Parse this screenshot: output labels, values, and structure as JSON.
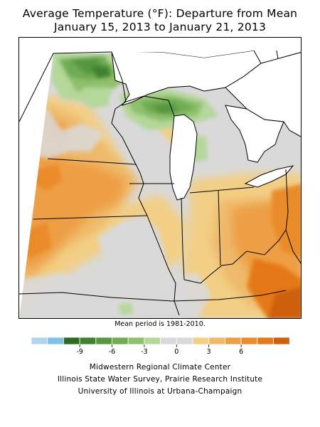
{
  "title": {
    "line1": "Average Temperature (°F): Departure from Mean",
    "line2": "January 15, 2013 to January 21, 2013"
  },
  "map": {
    "region": "Midwest (Minnesota, Iowa, Missouri, Wisconsin, Illinois, Michigan, Indiana, Ohio, Kentucky)",
    "land_neutral_color": "#d9d9d9",
    "lake_color": "#ffffff",
    "border_color": "#000000"
  },
  "note": "Mean period is 1981-2010.",
  "legend": {
    "colors": [
      "#b3d4ee",
      "#7ec1ea",
      "#2e6b22",
      "#3f8230",
      "#56973f",
      "#6fac52",
      "#8fc06c",
      "#b4d79a",
      "#d9d9d9",
      "#d9d9d9",
      "#f2cf85",
      "#efb96a",
      "#ee9f45",
      "#ea8b2c",
      "#e57818",
      "#cd5f0d"
    ],
    "tick_labels": [
      "-9",
      "-6",
      "-3",
      "0",
      "3",
      "6"
    ],
    "tick_boundaries": [
      3,
      5,
      7,
      9,
      11,
      13
    ],
    "unit": "°F departure from mean"
  },
  "credits": {
    "line1": "Midwestern Regional Climate Center",
    "line2": "Illinois State Water Survey, Prairie Research Institute",
    "line3": "University of Illinois at Urbana-Champaign"
  }
}
